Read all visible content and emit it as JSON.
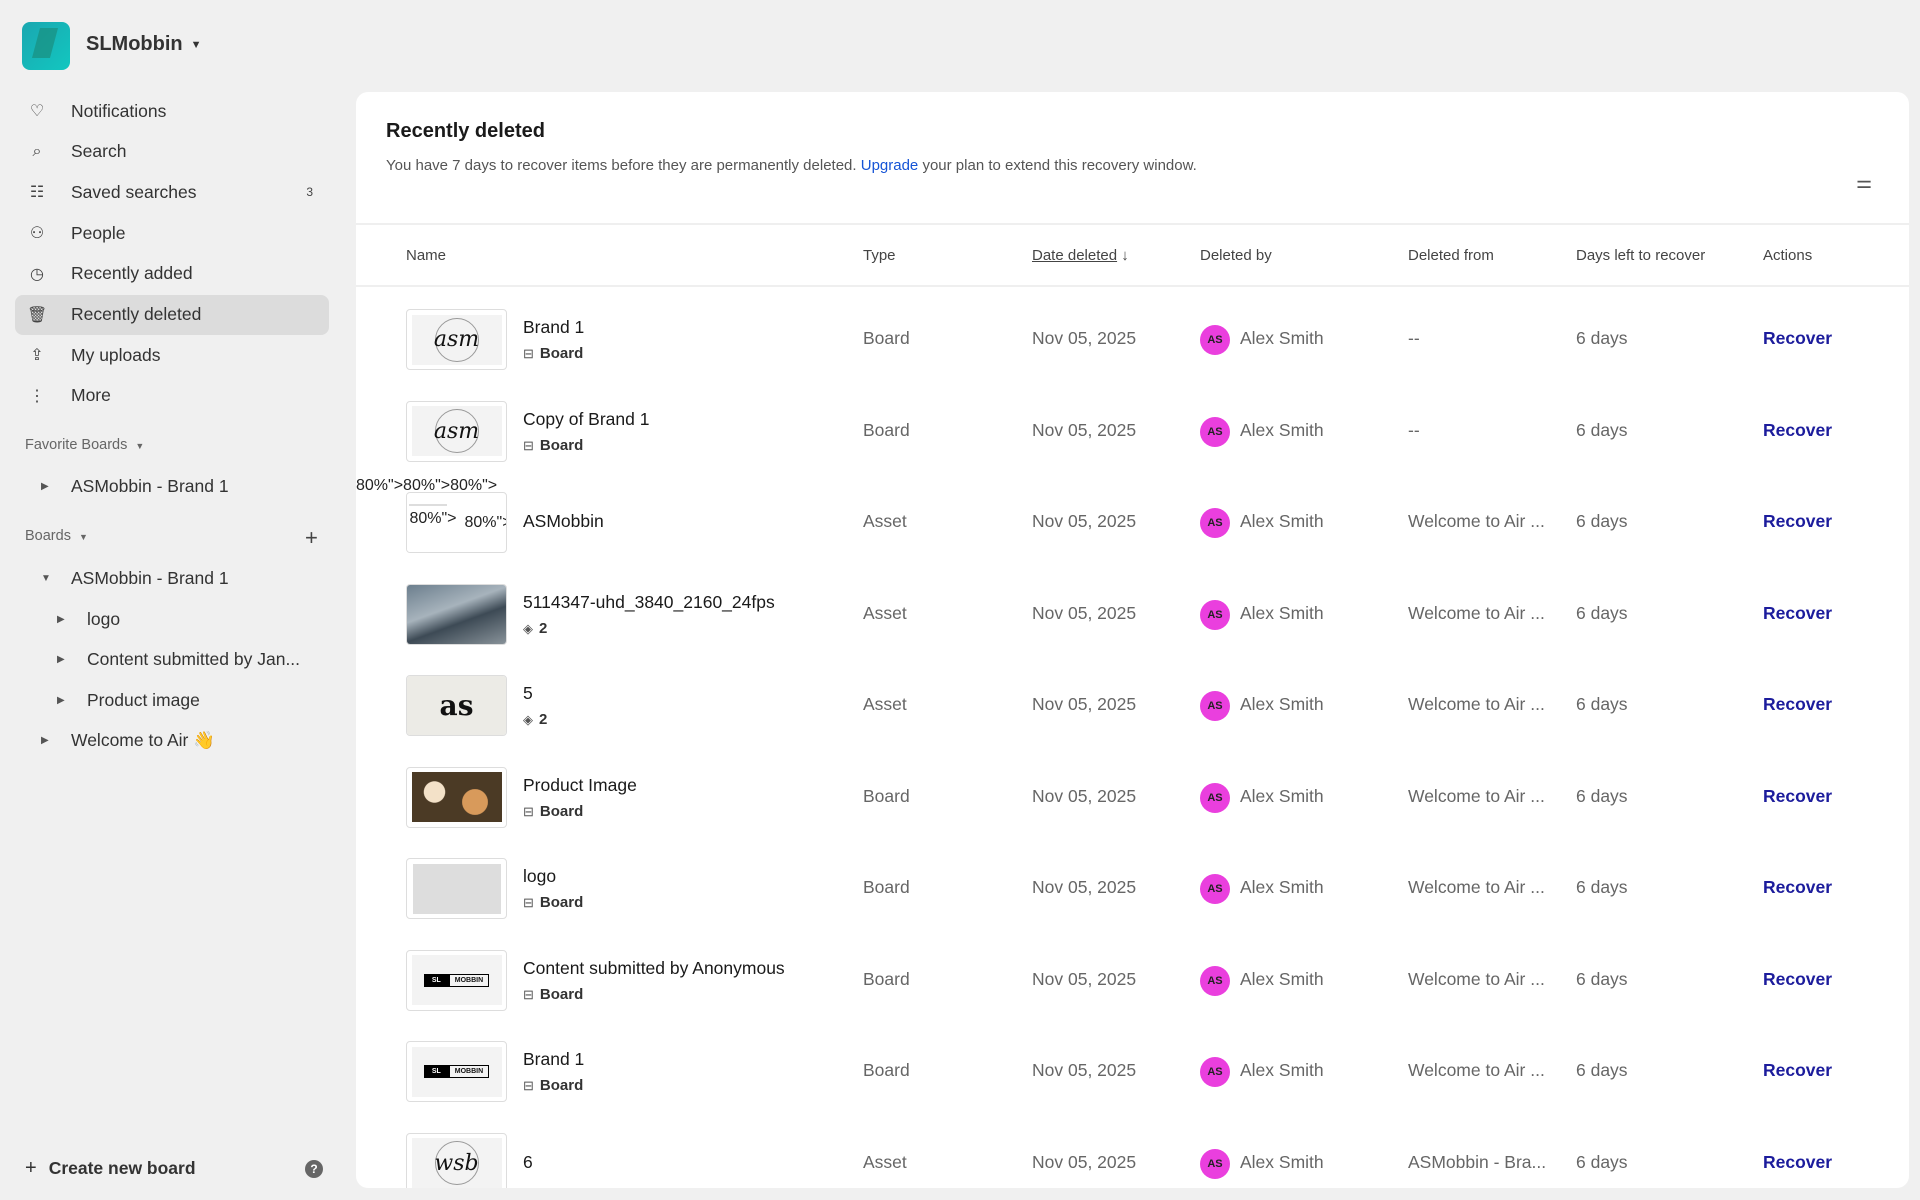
{
  "workspace": {
    "name": "SLMobbin"
  },
  "nav": [
    {
      "label": "Notifications",
      "icon": "bell-icon",
      "glyph": "♡"
    },
    {
      "label": "Search",
      "icon": "search-icon",
      "glyph": "⌕"
    },
    {
      "label": "Saved searches",
      "icon": "saved-search-icon",
      "glyph": "☷",
      "count": "3"
    },
    {
      "label": "People",
      "icon": "people-icon",
      "glyph": "⚇"
    },
    {
      "label": "Recently added",
      "icon": "clock-icon",
      "glyph": "◷"
    },
    {
      "label": "Recently deleted",
      "icon": "trash-icon",
      "glyph": "🗑",
      "active": true
    },
    {
      "label": "My uploads",
      "icon": "upload-icon",
      "glyph": "⇪"
    },
    {
      "label": "More",
      "icon": "more-icon",
      "glyph": "⋮"
    }
  ],
  "favorites": {
    "label": "Favorite Boards",
    "items": [
      "ASMobbin - Brand 1"
    ]
  },
  "boards": {
    "label": "Boards",
    "items": [
      {
        "label": "ASMobbin - Brand 1",
        "level": 1,
        "expanded": true
      },
      {
        "label": "logo",
        "level": 2
      },
      {
        "label": "Content submitted by Jan...",
        "level": 2
      },
      {
        "label": "Product image",
        "level": 2
      },
      {
        "label": "Welcome to Air 👋",
        "level": 1
      }
    ]
  },
  "create_board": "Create new board",
  "help": "?",
  "page": {
    "title": "Recently deleted",
    "desc_before": "You have 7 days to recover items before they are permanently deleted. ",
    "desc_link": "Upgrade",
    "desc_after": " your plan to extend this recovery window."
  },
  "columns": {
    "name": "Name",
    "type": "Type",
    "date": "Date deleted",
    "date_sort": "↓",
    "by": "Deleted by",
    "from": "Deleted from",
    "days": "Days left to recover",
    "actions": "Actions"
  },
  "rows": [
    {
      "name": "Brand 1",
      "sub": "Board",
      "sub_icon": "board",
      "thumb": "asm",
      "type": "Board",
      "date": "Nov 05, 2025",
      "initials": "AS",
      "by": "Alex Smith",
      "from": "--",
      "days": "6 days",
      "action": "Recover"
    },
    {
      "name": "Copy of Brand 1",
      "sub": "Board",
      "sub_icon": "board",
      "thumb": "asm",
      "type": "Board",
      "date": "Nov 05, 2025",
      "initials": "AS",
      "by": "Alex Smith",
      "from": "--",
      "days": "6 days",
      "action": "Recover"
    },
    {
      "name": "ASMobbin",
      "thumb": "doc",
      "type": "Asset",
      "date": "Nov 05, 2025",
      "initials": "AS",
      "by": "Alex Smith",
      "from": "Welcome to Air ...",
      "days": "6 days",
      "action": "Recover"
    },
    {
      "name": "5114347-uhd_3840_2160_24fps",
      "sub": "2",
      "sub_icon": "stack",
      "thumb": "street",
      "type": "Asset",
      "date": "Nov 05, 2025",
      "initials": "AS",
      "by": "Alex Smith",
      "from": "Welcome to Air ...",
      "days": "6 days",
      "action": "Recover"
    },
    {
      "name": "5",
      "sub": "2",
      "sub_icon": "stack",
      "thumb": "as",
      "type": "Asset",
      "date": "Nov 05, 2025",
      "initials": "AS",
      "by": "Alex Smith",
      "from": "Welcome to Air ...",
      "days": "6 days",
      "action": "Recover"
    },
    {
      "name": "Product Image",
      "sub": "Board",
      "sub_icon": "board",
      "thumb": "food",
      "type": "Board",
      "date": "Nov 05, 2025",
      "initials": "AS",
      "by": "Alex Smith",
      "from": "Welcome to Air ...",
      "days": "6 days",
      "action": "Recover"
    },
    {
      "name": "logo",
      "sub": "Board",
      "sub_icon": "board",
      "thumb": "gray",
      "type": "Board",
      "date": "Nov 05, 2025",
      "initials": "AS",
      "by": "Alex Smith",
      "from": "Welcome to Air ...",
      "days": "6 days",
      "action": "Recover"
    },
    {
      "name": "Content submitted by Anonymous",
      "sub": "Board",
      "sub_icon": "board",
      "thumb": "slm",
      "type": "Board",
      "date": "Nov 05, 2025",
      "initials": "AS",
      "by": "Alex Smith",
      "from": "Welcome to Air ...",
      "days": "6 days",
      "action": "Recover"
    },
    {
      "name": "Brand 1",
      "sub": "Board",
      "sub_icon": "board",
      "thumb": "slm",
      "type": "Board",
      "date": "Nov 05, 2025",
      "initials": "AS",
      "by": "Alex Smith",
      "from": "Welcome to Air ...",
      "days": "6 days",
      "action": "Recover"
    },
    {
      "name": "6",
      "thumb": "wsb",
      "type": "Asset",
      "date": "Nov 05, 2025",
      "initials": "AS",
      "by": "Alex Smith",
      "from": "ASMobbin - Bra...",
      "days": "6 days",
      "action": "Recover"
    }
  ],
  "thumb_text": {
    "asm": "asm",
    "as": "as",
    "wsb": "wsb",
    "slm_a": "SL",
    "slm_b": "MOBBIN"
  },
  "colors": {
    "accent": "#1c1c9c",
    "link": "#1554d6",
    "avatar": "#ea3fde",
    "active_nav": "#dcdcdc"
  }
}
